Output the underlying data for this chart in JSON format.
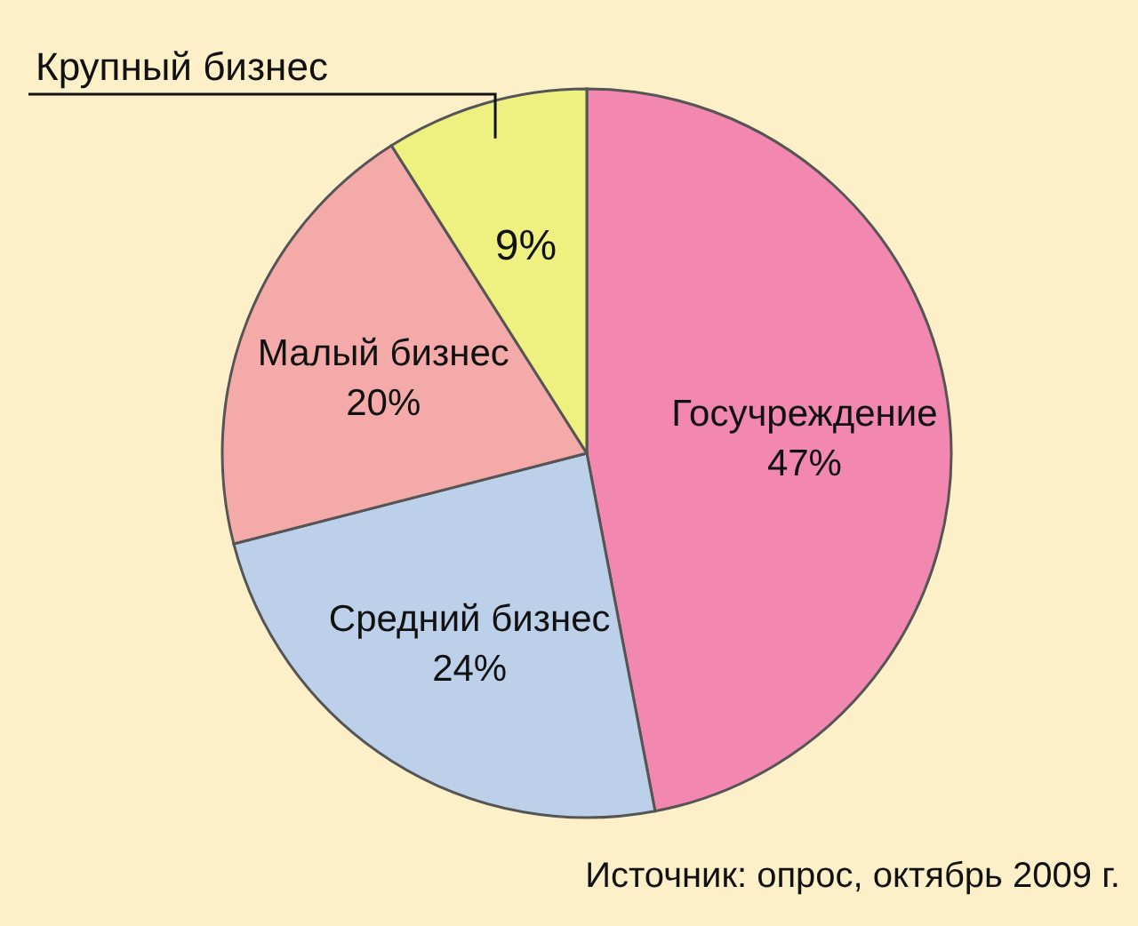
{
  "chart_data": {
    "type": "pie",
    "categories": [
      "Госучреждение",
      "Средний бизнес",
      "Малый бизнес",
      "Крупный бизнес"
    ],
    "values": [
      47,
      24,
      20,
      9
    ],
    "value_labels": [
      "47%",
      "24%",
      "20%",
      "9%"
    ],
    "colors": [
      "#f288b0",
      "#bcd0ea",
      "#f4aaa8",
      "#eef080"
    ],
    "annotations": [
      "Источник: опрос, октябрь 2009 г."
    ]
  }
}
